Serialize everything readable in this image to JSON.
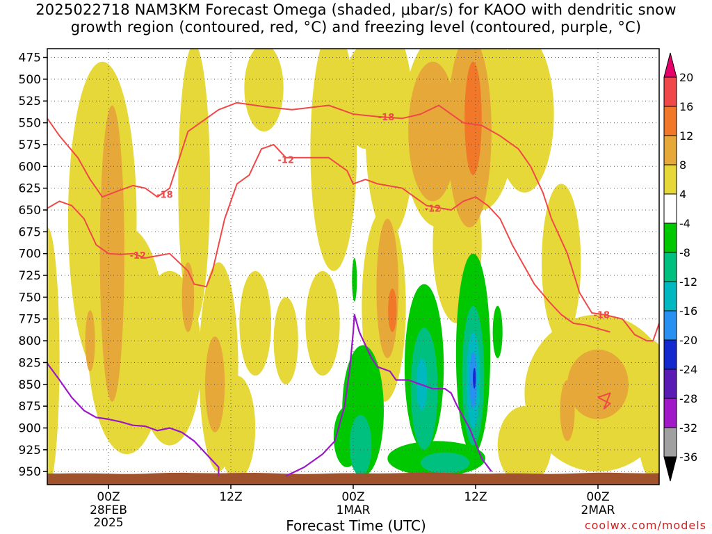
{
  "chart_data": {
    "type": "heatmap",
    "title_line1": "2025022718 NAM3KM Forecast Omega (shaded, μbar/s) for KAOO with dendritic snow",
    "title_line2": "growth region (contoured, red, °C) and freezing level (contoured, purple, °C)",
    "xlabel": "Forecast Time (UTC)",
    "credit": "coolwx.com/models",
    "y_axis": {
      "levels": [
        475,
        500,
        525,
        550,
        575,
        600,
        625,
        650,
        675,
        700,
        725,
        750,
        775,
        800,
        825,
        850,
        875,
        900,
        925,
        950
      ],
      "range": [
        465,
        965
      ]
    },
    "x_axis": {
      "range_hours": [
        -5,
        45
      ],
      "ticks": [
        {
          "hour": 0,
          "label": "00Z",
          "sub1": "28FEB",
          "sub2": "2025"
        },
        {
          "hour": 10,
          "label": "12Z",
          "sub1": "",
          "sub2": ""
        },
        {
          "hour": 20,
          "label": "00Z",
          "sub1": "1MAR",
          "sub2": ""
        },
        {
          "hour": 30,
          "label": "12Z",
          "sub1": "",
          "sub2": ""
        },
        {
          "hour": 40,
          "label": "00Z",
          "sub1": "2MAR",
          "sub2": ""
        }
      ]
    },
    "colorbar": {
      "labels": [
        "20",
        "16",
        "12",
        "8",
        "4",
        "-4",
        "-8",
        "-12",
        "-16",
        "-20",
        "-24",
        "-28",
        "-32",
        "-36"
      ],
      "colors": [
        "#e6006a",
        "#f04848",
        "#f07828",
        "#e6a838",
        "#e6d838",
        "#ffffff",
        "#00c800",
        "#00c080",
        "#00b8c0",
        "#2890f0",
        "#1428d0",
        "#5a1ab4",
        "#a018c8",
        "#a0a0a0",
        "#000000"
      ]
    },
    "omega_shading": [
      {
        "level": "4",
        "color": "#e6d838",
        "blobs": [
          {
            "t": -5,
            "p": 820,
            "rx": 1.0,
            "ry": 150
          },
          {
            "t": -0.5,
            "p": 660,
            "rx": 2.8,
            "ry": 180
          },
          {
            "t": 1.5,
            "p": 800,
            "rx": 3.2,
            "ry": 130
          },
          {
            "t": 5,
            "p": 820,
            "rx": 2.6,
            "ry": 100
          },
          {
            "t": 7,
            "p": 620,
            "rx": 1.3,
            "ry": 160
          },
          {
            "t": 9,
            "p": 830,
            "rx": 1.6,
            "ry": 120
          },
          {
            "t": 10.5,
            "p": 900,
            "rx": 1.5,
            "ry": 60
          },
          {
            "t": 12,
            "p": 780,
            "rx": 1.3,
            "ry": 60
          },
          {
            "t": 14.5,
            "p": 800,
            "rx": 1.0,
            "ry": 50
          },
          {
            "t": 17.5,
            "p": 780,
            "rx": 1.4,
            "ry": 60
          },
          {
            "t": 12.7,
            "p": 510,
            "rx": 1.6,
            "ry": 50
          },
          {
            "t": 18.4,
            "p": 580,
            "rx": 1.9,
            "ry": 140
          },
          {
            "t": 21,
            "p": 520,
            "rx": 1.8,
            "ry": 60
          },
          {
            "t": 23,
            "p": 560,
            "rx": 2.0,
            "ry": 120
          },
          {
            "t": 22.5,
            "p": 760,
            "rx": 1.8,
            "ry": 110
          },
          {
            "t": 27,
            "p": 560,
            "rx": 3.0,
            "ry": 110
          },
          {
            "t": 28.5,
            "p": 690,
            "rx": 2.0,
            "ry": 90
          },
          {
            "t": 30.5,
            "p": 540,
            "rx": 2.8,
            "ry": 110
          },
          {
            "t": 34,
            "p": 540,
            "rx": 2.4,
            "ry": 90
          },
          {
            "t": 37,
            "p": 710,
            "rx": 1.6,
            "ry": 90
          },
          {
            "t": 40,
            "p": 860,
            "rx": 6.0,
            "ry": 90
          },
          {
            "t": 34,
            "p": 920,
            "rx": 2.2,
            "ry": 45
          },
          {
            "t": 44.5,
            "p": 880,
            "rx": 1.4,
            "ry": 80
          }
        ]
      },
      {
        "level": "8",
        "color": "#e6a838",
        "blobs": [
          {
            "t": 0.3,
            "p": 700,
            "rx": 1.0,
            "ry": 170
          },
          {
            "t": -1.5,
            "p": 800,
            "rx": 0.4,
            "ry": 35
          },
          {
            "t": 6.5,
            "p": 750,
            "rx": 0.5,
            "ry": 40
          },
          {
            "t": 8.7,
            "p": 850,
            "rx": 0.8,
            "ry": 55
          },
          {
            "t": 22.8,
            "p": 740,
            "rx": 0.9,
            "ry": 80
          },
          {
            "t": 26.5,
            "p": 560,
            "rx": 2.0,
            "ry": 80
          },
          {
            "t": 29.5,
            "p": 560,
            "rx": 1.8,
            "ry": 110
          },
          {
            "t": 40,
            "p": 850,
            "rx": 2.5,
            "ry": 40
          },
          {
            "t": 37.5,
            "p": 880,
            "rx": 0.6,
            "ry": 35
          }
        ]
      },
      {
        "level": "12",
        "color": "#f07828",
        "blobs": [
          {
            "t": 29.8,
            "p": 545,
            "rx": 0.7,
            "ry": 65
          },
          {
            "t": 23.2,
            "p": 765,
            "rx": 0.35,
            "ry": 25
          }
        ]
      },
      {
        "level": "-4",
        "color": "#00c800",
        "blobs": [
          {
            "t": 20.8,
            "p": 880,
            "rx": 1.7,
            "ry": 75
          },
          {
            "t": 19.5,
            "p": 910,
            "rx": 1.1,
            "ry": 35
          },
          {
            "t": 25.8,
            "p": 830,
            "rx": 1.6,
            "ry": 95
          },
          {
            "t": 29.8,
            "p": 815,
            "rx": 1.4,
            "ry": 115
          },
          {
            "t": 26.8,
            "p": 935,
            "rx": 4.0,
            "ry": 20
          },
          {
            "t": 20.1,
            "p": 730,
            "rx": 0.2,
            "ry": 25
          },
          {
            "t": 31.8,
            "p": 790,
            "rx": 0.4,
            "ry": 30
          }
        ]
      },
      {
        "level": "-8",
        "color": "#00c080",
        "blobs": [
          {
            "t": 20.6,
            "p": 920,
            "rx": 0.9,
            "ry": 35
          },
          {
            "t": 25.8,
            "p": 855,
            "rx": 1.1,
            "ry": 70
          },
          {
            "t": 29.8,
            "p": 840,
            "rx": 0.9,
            "ry": 80
          },
          {
            "t": 27.5,
            "p": 940,
            "rx": 2.0,
            "ry": 12
          }
        ]
      },
      {
        "level": "-12",
        "color": "#00b8c0",
        "blobs": [
          {
            "t": 25.6,
            "p": 850,
            "rx": 0.45,
            "ry": 30
          },
          {
            "t": 29.8,
            "p": 845,
            "rx": 0.55,
            "ry": 55
          }
        ]
      },
      {
        "level": "-16",
        "color": "#2890f0",
        "blobs": [
          {
            "t": 29.8,
            "p": 845,
            "rx": 0.3,
            "ry": 32
          }
        ]
      },
      {
        "level": "-20",
        "color": "#1428d0",
        "blobs": [
          {
            "t": 29.9,
            "p": 843,
            "rx": 0.12,
            "ry": 12
          }
        ]
      }
    ],
    "contours_red": [
      {
        "label": "-18",
        "label_at": [
          4.6,
          630
        ],
        "points": [
          [
            -5,
            545
          ],
          [
            -4,
            565
          ],
          [
            -2.5,
            590
          ],
          [
            -1.5,
            615
          ],
          [
            -0.5,
            635
          ],
          [
            0.8,
            628
          ],
          [
            2,
            622
          ],
          [
            3,
            625
          ],
          [
            4,
            635
          ],
          [
            5,
            625
          ],
          [
            6.5,
            560
          ],
          [
            7.5,
            550
          ],
          [
            9,
            535
          ],
          [
            10.5,
            527
          ],
          [
            13,
            532
          ],
          [
            15,
            535
          ],
          [
            18,
            530
          ],
          [
            20,
            540
          ],
          [
            22,
            543
          ],
          [
            24,
            545
          ],
          [
            25.5,
            540
          ],
          [
            27,
            530
          ],
          [
            29,
            550
          ],
          [
            30.5,
            553
          ],
          [
            32,
            565
          ],
          [
            33.5,
            580
          ],
          [
            34.5,
            600
          ],
          [
            35.5,
            630
          ],
          [
            36.2,
            660
          ],
          [
            37.5,
            700
          ],
          [
            38.5,
            745
          ],
          [
            39.5,
            768
          ],
          [
            40.5,
            770
          ],
          [
            42,
            775
          ],
          [
            43,
            793
          ],
          [
            44,
            800
          ],
          [
            44.5,
            800
          ],
          [
            45,
            780
          ]
        ]
      },
      {
        "label": "-12",
        "label_at": [
          2.4,
          700
        ],
        "points": [
          [
            -5,
            648
          ],
          [
            -4,
            640
          ],
          [
            -3,
            645
          ],
          [
            -2,
            660
          ],
          [
            -1,
            690
          ],
          [
            0,
            700
          ],
          [
            1,
            701
          ],
          [
            2,
            700
          ],
          [
            3,
            705
          ],
          [
            5,
            700
          ],
          [
            6.5,
            720
          ],
          [
            7,
            735
          ],
          [
            8,
            738
          ],
          [
            8.5,
            720
          ],
          [
            9.5,
            660
          ],
          [
            10.5,
            620
          ],
          [
            11.5,
            610
          ],
          [
            12.5,
            580
          ],
          [
            13.5,
            575
          ],
          [
            14.5,
            590
          ],
          [
            16,
            590
          ],
          [
            18,
            590
          ],
          [
            19.5,
            605
          ],
          [
            20,
            620
          ],
          [
            21,
            615
          ],
          [
            22,
            620
          ],
          [
            24,
            625
          ],
          [
            25,
            635
          ],
          [
            26,
            645
          ],
          [
            28,
            650
          ],
          [
            29,
            640
          ],
          [
            30,
            635
          ],
          [
            31,
            645
          ],
          [
            32,
            660
          ],
          [
            33,
            690
          ],
          [
            34,
            715
          ],
          [
            34.8,
            735
          ],
          [
            36,
            755
          ],
          [
            37,
            770
          ],
          [
            38,
            780
          ],
          [
            39,
            782
          ],
          [
            41,
            790
          ]
        ]
      },
      {
        "label": "",
        "label_at": [
          0,
          0
        ],
        "points": [
          [
            40,
            865
          ],
          [
            41,
            872
          ],
          [
            40.5,
            878
          ],
          [
            41,
            860
          ],
          [
            40,
            865
          ]
        ]
      }
    ],
    "contour_labels_red": [
      {
        "text": "-18",
        "t": 4.6,
        "p": 632
      },
      {
        "text": "-12",
        "t": 2.4,
        "p": 702
      },
      {
        "text": "-12",
        "t": 14.5,
        "p": 592
      },
      {
        "text": "-18",
        "t": 22.7,
        "p": 543
      },
      {
        "text": "-12",
        "t": 26.5,
        "p": 648
      },
      {
        "text": "-18",
        "t": 40.3,
        "p": 770
      }
    ],
    "contour_purple": [
      {
        "points": [
          [
            -5,
            826
          ],
          [
            -4,
            845
          ],
          [
            -3,
            865
          ],
          [
            -2,
            880
          ],
          [
            -1,
            888
          ],
          [
            0,
            890
          ],
          [
            1,
            893
          ],
          [
            2,
            897
          ],
          [
            3,
            898
          ],
          [
            4,
            903
          ],
          [
            5,
            900
          ],
          [
            6,
            905
          ],
          [
            7,
            915
          ],
          [
            8,
            930
          ],
          [
            9,
            945
          ],
          [
            9,
            955
          ]
        ]
      },
      {
        "points": [
          [
            14.5,
            955
          ],
          [
            16,
            945
          ],
          [
            17.5,
            930
          ],
          [
            18.5,
            915
          ],
          [
            19.3,
            875
          ],
          [
            19.7,
            835
          ],
          [
            20,
            790
          ],
          [
            20.1,
            770
          ],
          [
            20.5,
            790
          ],
          [
            21,
            805
          ],
          [
            21.5,
            820
          ],
          [
            22,
            830
          ],
          [
            23,
            835
          ],
          [
            23.5,
            845
          ],
          [
            24.5,
            845
          ],
          [
            25.5,
            850
          ],
          [
            26.5,
            855
          ],
          [
            27.5,
            855
          ],
          [
            28,
            860
          ],
          [
            28.5,
            875
          ],
          [
            29.5,
            900
          ],
          [
            30.5,
            935
          ],
          [
            31.3,
            950
          ]
        ]
      }
    ],
    "ground_level_hpa": 952
  }
}
